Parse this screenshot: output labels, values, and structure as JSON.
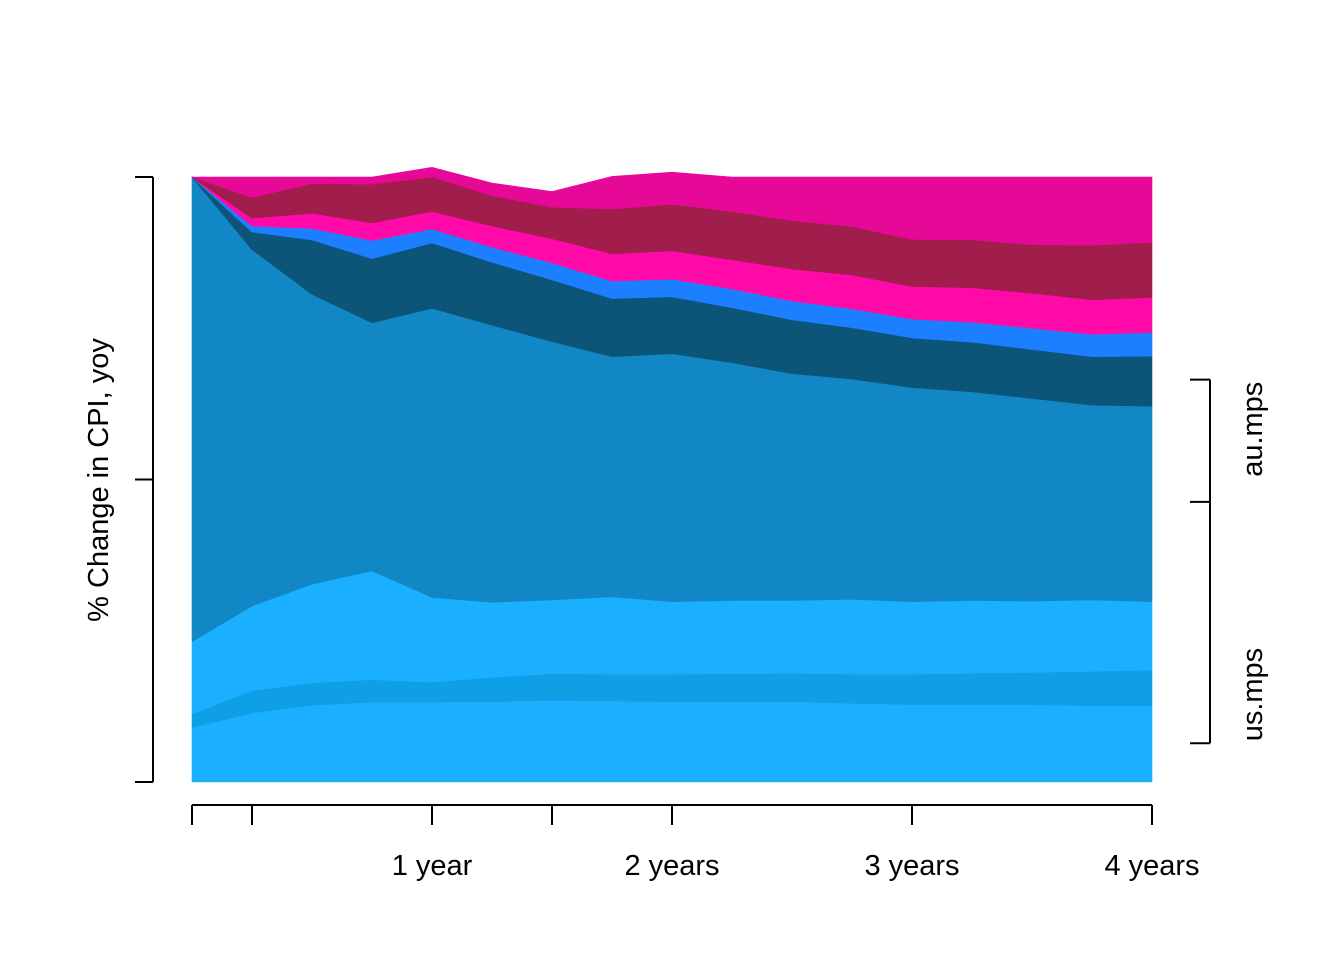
{
  "chart_data": {
    "type": "area",
    "stacked": true,
    "normalized": true,
    "title": "",
    "ylabel": "% Change in CPI, yoy",
    "xlabel": "",
    "x": [
      0,
      0.25,
      0.5,
      0.75,
      1,
      1.25,
      1.5,
      1.75,
      2,
      2.25,
      2.5,
      2.75,
      3,
      3.25,
      3.5,
      3.75,
      4
    ],
    "xticks": [
      0,
      0.25,
      1,
      1.5,
      2,
      3,
      4
    ],
    "xtick_labels": [
      {
        "x": 1,
        "label": "1 year"
      },
      {
        "x": 2,
        "label": "2 years"
      },
      {
        "x": 3,
        "label": "3 years"
      },
      {
        "x": 4,
        "label": "4 years"
      }
    ],
    "ylim": [
      0,
      1
    ],
    "yticks": [
      0,
      0.5,
      1
    ],
    "grid": false,
    "series": [
      {
        "color": "#1AB0FF",
        "values": [
          0.09,
          0.114,
          0.127,
          0.132,
          0.132,
          0.133,
          0.135,
          0.134,
          0.133,
          0.133,
          0.133,
          0.13,
          0.128,
          0.128,
          0.128,
          0.126,
          0.126
        ]
      },
      {
        "color": "#0E9FE6",
        "values": [
          0.022,
          0.037,
          0.037,
          0.037,
          0.033,
          0.04,
          0.044,
          0.044,
          0.045,
          0.046,
          0.047,
          0.048,
          0.05,
          0.052,
          0.053,
          0.057,
          0.059
        ]
      },
      {
        "color": "#1AB0FF",
        "values": [
          0.12,
          0.14,
          0.163,
          0.18,
          0.14,
          0.124,
          0.122,
          0.128,
          0.12,
          0.121,
          0.12,
          0.124,
          0.12,
          0.12,
          0.118,
          0.118,
          0.113
        ]
      },
      {
        "color": "#1188C5",
        "values": [
          0.768,
          0.589,
          0.479,
          0.41,
          0.478,
          0.458,
          0.427,
          0.397,
          0.41,
          0.393,
          0.375,
          0.364,
          0.354,
          0.345,
          0.335,
          0.322,
          0.323
        ]
      },
      {
        "color": "#0C5478",
        "values": [
          0,
          0.029,
          0.09,
          0.106,
          0.108,
          0.104,
          0.102,
          0.096,
          0.094,
          0.091,
          0.089,
          0.085,
          0.082,
          0.082,
          0.081,
          0.08,
          0.083
        ]
      },
      {
        "color": "#1C7FFF",
        "values": [
          0,
          0.01,
          0.019,
          0.03,
          0.023,
          0.025,
          0.028,
          0.029,
          0.029,
          0.031,
          0.031,
          0.031,
          0.031,
          0.033,
          0.035,
          0.037,
          0.039
        ]
      },
      {
        "color": "#FF0AA8",
        "values": [
          0,
          0.013,
          0.025,
          0.029,
          0.029,
          0.035,
          0.04,
          0.045,
          0.047,
          0.048,
          0.053,
          0.056,
          0.054,
          0.057,
          0.058,
          0.057,
          0.058
        ]
      },
      {
        "color": "#A11D4B",
        "values": [
          0,
          0.034,
          0.049,
          0.064,
          0.057,
          0.05,
          0.052,
          0.074,
          0.077,
          0.08,
          0.08,
          0.08,
          0.078,
          0.079,
          0.08,
          0.09,
          0.091
        ]
      },
      {
        "color": "#E60896",
        "values": [
          0,
          0.034,
          0.011,
          0.012,
          0.016,
          0.021,
          0.026,
          0.054,
          0.053,
          0.057,
          0.072,
          0.082,
          0.103,
          0.104,
          0.112,
          0.113,
          0.108
        ]
      }
    ],
    "right_groups": [
      {
        "label": "us.mps",
        "from": 0.064,
        "to": 0.463
      },
      {
        "label": "au.mps",
        "from": 0.463,
        "to": 0.665
      }
    ]
  }
}
